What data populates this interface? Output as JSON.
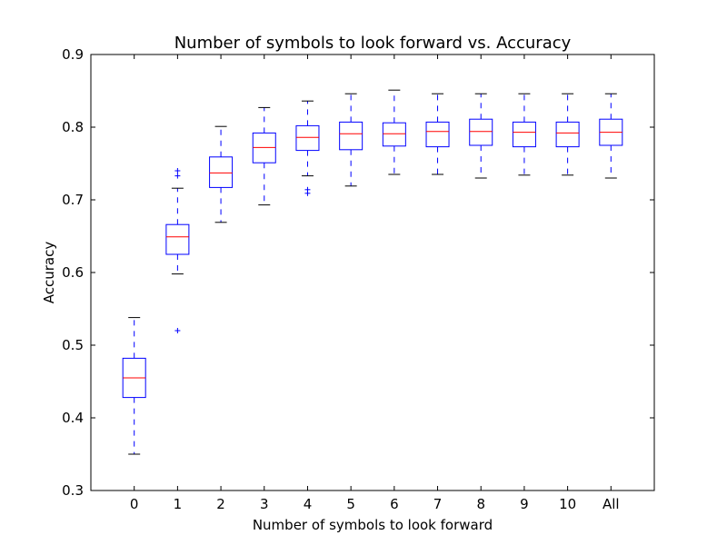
{
  "chart_data": {
    "type": "box",
    "title": "Number of symbols to look forward vs. Accuracy",
    "xlabel": "Number of symbols to look forward",
    "ylabel": "Accuracy",
    "ylim": [
      0.3,
      0.9
    ],
    "yticks": [
      "0.3",
      "0.4",
      "0.5",
      "0.6",
      "0.7",
      "0.8",
      "0.9"
    ],
    "categories": [
      "0",
      "1",
      "2",
      "3",
      "4",
      "5",
      "6",
      "7",
      "8",
      "9",
      "10",
      "All"
    ],
    "boxes": [
      {
        "whisker_low": 0.35,
        "q1": 0.428,
        "median": 0.455,
        "q3": 0.482,
        "whisker_high": 0.538,
        "outliers": []
      },
      {
        "whisker_low": 0.598,
        "q1": 0.625,
        "median": 0.649,
        "q3": 0.666,
        "whisker_high": 0.716,
        "outliers": [
          0.52,
          0.733,
          0.74
        ]
      },
      {
        "whisker_low": 0.669,
        "q1": 0.717,
        "median": 0.737,
        "q3": 0.759,
        "whisker_high": 0.801,
        "outliers": []
      },
      {
        "whisker_low": 0.693,
        "q1": 0.751,
        "median": 0.772,
        "q3": 0.792,
        "whisker_high": 0.827,
        "outliers": []
      },
      {
        "whisker_low": 0.733,
        "q1": 0.768,
        "median": 0.786,
        "q3": 0.802,
        "whisker_high": 0.836,
        "outliers": [
          0.709,
          0.714
        ]
      },
      {
        "whisker_low": 0.719,
        "q1": 0.769,
        "median": 0.791,
        "q3": 0.807,
        "whisker_high": 0.846,
        "outliers": []
      },
      {
        "whisker_low": 0.735,
        "q1": 0.774,
        "median": 0.791,
        "q3": 0.806,
        "whisker_high": 0.851,
        "outliers": []
      },
      {
        "whisker_low": 0.735,
        "q1": 0.773,
        "median": 0.794,
        "q3": 0.807,
        "whisker_high": 0.846,
        "outliers": []
      },
      {
        "whisker_low": 0.73,
        "q1": 0.775,
        "median": 0.794,
        "q3": 0.811,
        "whisker_high": 0.846,
        "outliers": []
      },
      {
        "whisker_low": 0.734,
        "q1": 0.773,
        "median": 0.793,
        "q3": 0.807,
        "whisker_high": 0.846,
        "outliers": []
      },
      {
        "whisker_low": 0.734,
        "q1": 0.773,
        "median": 0.792,
        "q3": 0.807,
        "whisker_high": 0.846,
        "outliers": []
      },
      {
        "whisker_low": 0.73,
        "q1": 0.775,
        "median": 0.793,
        "q3": 0.811,
        "whisker_high": 0.846,
        "outliers": []
      }
    ],
    "colors": {
      "box": "#0000ff",
      "whisker": "#0000ff",
      "cap": "#000000",
      "median": "#ff0000",
      "flier": "#0000ff",
      "axes": "#000000"
    },
    "grid": false,
    "legend": "none"
  }
}
